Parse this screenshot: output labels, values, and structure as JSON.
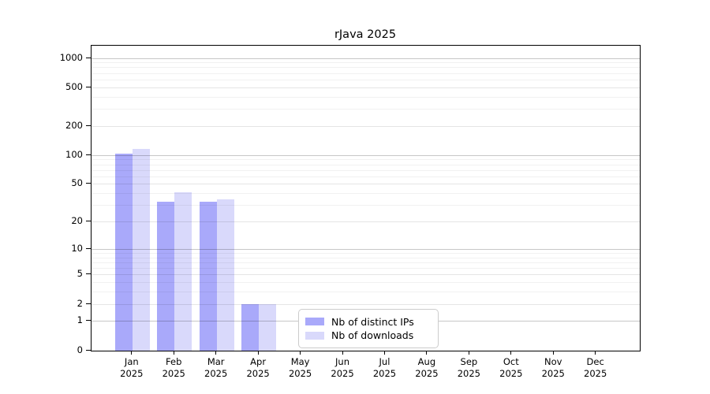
{
  "title": "rJava 2025",
  "chart_data": {
    "type": "bar",
    "title": "rJava 2025",
    "categories": [
      "Jan 2025",
      "Feb 2025",
      "Mar 2025",
      "Apr 2025",
      "May 2025",
      "Jun 2025",
      "Jul 2025",
      "Aug 2025",
      "Sep 2025",
      "Oct 2025",
      "Nov 2025",
      "Dec 2025"
    ],
    "series": [
      {
        "name": "Nb of distinct IPs",
        "color": "#a9a9fa",
        "values": [
          105,
          33,
          33,
          2,
          0,
          0,
          0,
          0,
          0,
          0,
          0,
          0
        ]
      },
      {
        "name": "Nb of downloads",
        "color": "#d9d9fb",
        "values": [
          116,
          41,
          35,
          2,
          0,
          0,
          0,
          0,
          0,
          0,
          0,
          0
        ]
      }
    ],
    "xlabel": "",
    "ylabel": "",
    "y_axis": {
      "scale": "log1p",
      "ticks": [
        0,
        1,
        2,
        5,
        10,
        20,
        50,
        100,
        200,
        500,
        1000
      ],
      "minor_ticks": [
        3,
        4,
        6,
        7,
        8,
        9,
        30,
        40,
        60,
        70,
        80,
        90,
        300,
        400,
        600,
        700,
        800,
        900
      ],
      "range_top": 1350
    },
    "grid": "horizontal",
    "legend_position": "lower-center-inside",
    "colors": {
      "decade_gridline": "rgba(0,0,0,0.22)",
      "labeled_gridline": "rgba(0,0,0,0.10)",
      "minor_gridline": "rgba(0,0,0,0.055)",
      "axis": "#000000",
      "legend_border": "#cccccc"
    }
  }
}
